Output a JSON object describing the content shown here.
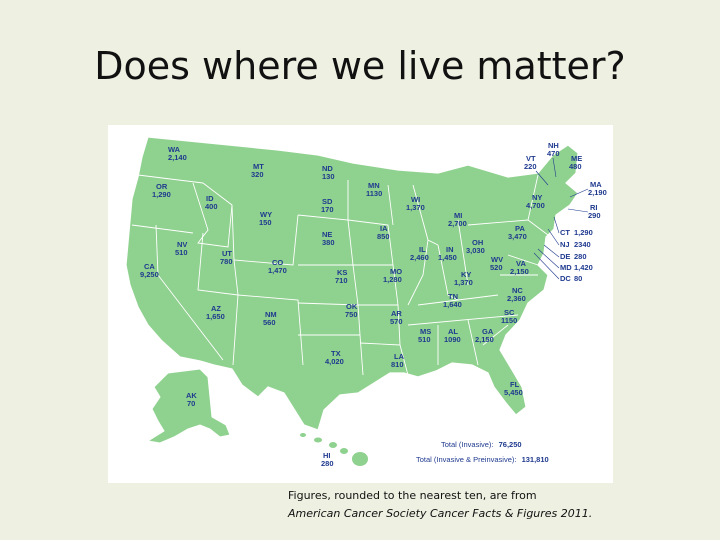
{
  "title": "Does where we live matter?",
  "states": {
    "WA": "2,140",
    "OR": "1,290",
    "CA": "9,250",
    "ID": "400",
    "NV": "510",
    "MT": "320",
    "WY": "150",
    "UT": "780",
    "AZ": "1,650",
    "CO": "1,470",
    "NM": "560",
    "ND": "130",
    "SD": "170",
    "NE": "380",
    "KS": "710",
    "OK": "750",
    "TX": "4,020",
    "MN": "1130",
    "IA": "850",
    "MO": "1,280",
    "AR": "570",
    "LA": "810",
    "WI": "1,370",
    "IL": "2,460",
    "MI": "2,700",
    "IN": "1,450",
    "OH": "3,030",
    "KY": "1,370",
    "TN": "1,640",
    "MS": "510",
    "AL": "1090",
    "GA": "2,150",
    "FL": "5,450",
    "SC": "1150",
    "NC": "2,360",
    "VA": "2,150",
    "WV": "520",
    "PA": "3,470",
    "NY": "4,700",
    "VT": "220",
    "NH": "470",
    "ME": "480",
    "MA": "2,190",
    "RI": "290",
    "CT": "1,290",
    "NJ": "2340",
    "DE": "280",
    "MD": "1,420",
    "DC": "80",
    "AK": "70",
    "HI": "280"
  },
  "totals": {
    "invasive_label": "Total (Invasive):",
    "invasive_value": "76,250",
    "all_label": "Total (Invasive & Preinvasive):",
    "all_value": "131,810"
  },
  "caption": {
    "line1": "Figures, rounded to the nearest ten, are from",
    "line2": "American Cancer Society Cancer Facts & Figures 2011."
  },
  "colors": {
    "land": "#8fd18f",
    "border": "#ffffff",
    "label": "#1f3a8f",
    "background": "#eef0e2"
  }
}
